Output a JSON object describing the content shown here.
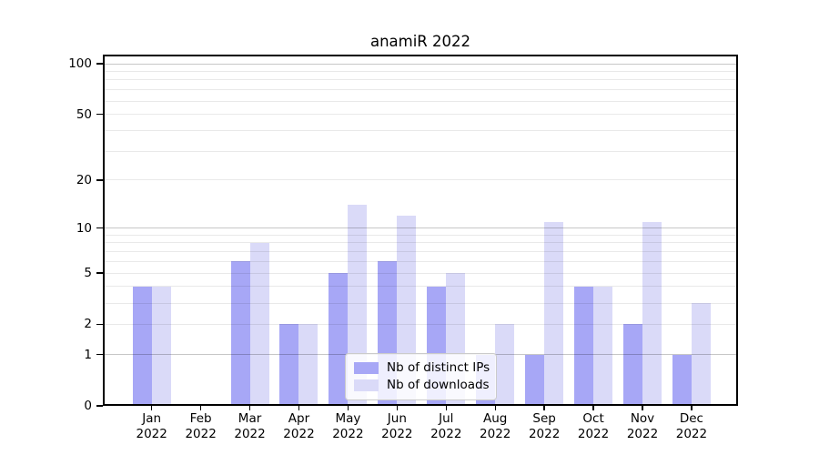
{
  "chart_data": {
    "type": "bar",
    "title": "anamiR 2022",
    "categories": [
      "Jan 2022",
      "Feb 2022",
      "Mar 2022",
      "Apr 2022",
      "May 2022",
      "Jun 2022",
      "Jul 2022",
      "Aug 2022",
      "Sep 2022",
      "Oct 2022",
      "Nov 2022",
      "Dec 2022"
    ],
    "series": [
      {
        "name": "Nb of distinct IPs",
        "color": "#a7a7f6",
        "values": [
          4,
          0,
          6,
          2,
          5,
          6,
          4,
          1,
          1,
          4,
          2,
          1
        ]
      },
      {
        "name": "Nb of downloads",
        "color": "#dadaf8",
        "values": [
          4,
          0,
          8,
          2,
          14,
          12,
          5,
          2,
          11,
          4,
          11,
          3
        ]
      }
    ],
    "yscale": "log1p",
    "ylim": [
      0,
      110
    ],
    "yticks": [
      0,
      1,
      2,
      5,
      10,
      20,
      50,
      100
    ],
    "major_gridlines": [
      1,
      10,
      100
    ],
    "minor_gridlines": [
      2,
      3,
      4,
      5,
      6,
      7,
      8,
      9,
      20,
      30,
      40,
      50,
      60,
      70,
      80,
      90
    ],
    "xlabel": "",
    "ylabel": "",
    "grid": true,
    "legend_position": "lower center"
  },
  "colors": {
    "background": "#ffffff",
    "axis": "#000000",
    "text": "#000000",
    "major_grid": "#c7c7c7",
    "minor_grid": "#e9e9e9",
    "legend_border": "#cbcbcb",
    "legend_background": "#ffffff"
  }
}
